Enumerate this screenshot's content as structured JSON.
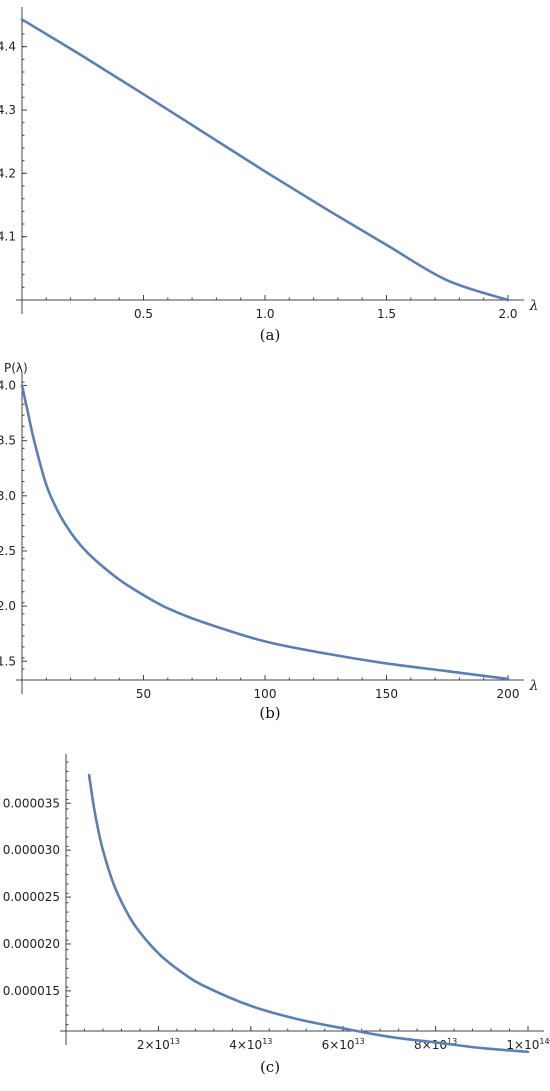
{
  "colors": {
    "series": "#5b7fb4",
    "axis": "#444444"
  },
  "chart_data": [
    {
      "id": "a",
      "type": "line",
      "caption": "(a)",
      "xlabel": "λ",
      "ylabel": "",
      "xlim": [
        0,
        2.0
      ],
      "ylim": [
        4.0,
        4.45
      ],
      "x_ticks": [
        0.5,
        1.0,
        1.5,
        2.0
      ],
      "x_tick_labels": [
        "0.5",
        "1.0",
        "1.5",
        "2.0"
      ],
      "y_ticks": [
        4.1,
        4.2,
        4.3,
        4.4
      ],
      "y_tick_labels": [
        "4.1",
        "4.2",
        "4.3",
        "4.4"
      ],
      "grid": false,
      "series": [
        {
          "x": [
            0,
            0.25,
            0.5,
            0.75,
            1.0,
            1.25,
            1.5,
            1.75,
            2.0
          ],
          "y": [
            4.443,
            4.385,
            4.325,
            4.264,
            4.203,
            4.144,
            4.087,
            4.031,
            4.0
          ]
        }
      ]
    },
    {
      "id": "b",
      "type": "line",
      "caption": "(b)",
      "xlabel": "λ",
      "ylabel": "P(λ)",
      "xlim": [
        0,
        200
      ],
      "ylim": [
        1.33,
        4.05
      ],
      "x_ticks": [
        50,
        100,
        150,
        200
      ],
      "x_tick_labels": [
        "50",
        "100",
        "150",
        "200"
      ],
      "y_ticks": [
        1.5,
        2.0,
        2.5,
        3.0,
        3.5,
        4.0
      ],
      "y_tick_labels": [
        "1.5",
        "2.0",
        "2.5",
        "3.0",
        "3.5",
        "4.0"
      ],
      "grid": false,
      "series": [
        {
          "x": [
            0,
            2,
            5,
            10,
            15,
            20,
            25,
            30,
            40,
            50,
            60,
            75,
            100,
            125,
            150,
            175,
            200
          ],
          "y": [
            4.0,
            3.8,
            3.5,
            3.1,
            2.85,
            2.67,
            2.53,
            2.42,
            2.24,
            2.1,
            1.98,
            1.85,
            1.68,
            1.57,
            1.48,
            1.41,
            1.34
          ]
        }
      ]
    },
    {
      "id": "c",
      "type": "line",
      "caption": "(c)",
      "xlabel": "λ",
      "ylabel": "",
      "xlim": [
        0,
        100000000000000.0
      ],
      "ylim": [
        1.04e-05,
        3.94e-05
      ],
      "x_ticks": [
        20000000000000.0,
        40000000000000.0,
        60000000000000.0,
        80000000000000.0,
        100000000000000.0
      ],
      "x_tick_labels": [
        [
          "2",
          "13"
        ],
        [
          "4",
          "13"
        ],
        [
          "6",
          "13"
        ],
        [
          "8",
          "13"
        ],
        [
          "1",
          "14"
        ]
      ],
      "y_ticks": [
        1.5e-05,
        2e-05,
        2.5e-05,
        3e-05,
        3.5e-05
      ],
      "y_tick_labels": [
        "0.000015",
        "0.000020",
        "0.000025",
        "0.000030",
        "0.000035"
      ],
      "grid": false,
      "series": [
        {
          "x": [
            5000000000000.0,
            6000000000000.0,
            7000000000000.0,
            8000000000000.0,
            10000000000000.0,
            12000000000000.0,
            15000000000000.0,
            20000000000000.0,
            25000000000000.0,
            30000000000000.0,
            40000000000000.0,
            50000000000000.0,
            60000000000000.0,
            70000000000000.0,
            80000000000000.0,
            90000000000000.0,
            100000000000000.0
          ],
          "y": [
            3.8e-05,
            3.47e-05,
            3.21e-05,
            3e-05,
            2.68e-05,
            2.45e-05,
            2.19e-05,
            1.9e-05,
            1.7e-05,
            1.55e-05,
            1.34e-05,
            1.2e-05,
            1.1e-05,
            1.01e-05,
            9.5e-06,
            8.9e-06,
            8.5e-06
          ]
        }
      ]
    }
  ]
}
